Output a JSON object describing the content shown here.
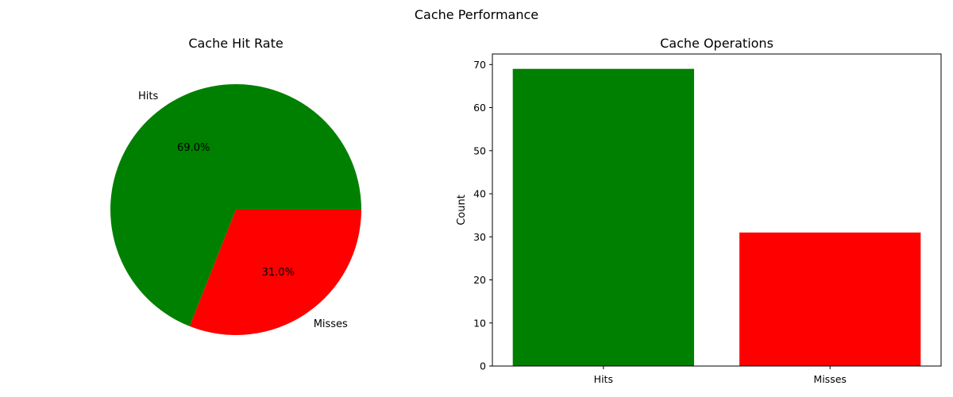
{
  "figure": {
    "title": "Cache Performance"
  },
  "chart_data": [
    {
      "type": "pie",
      "title": "Cache Hit Rate",
      "labels": [
        "Hits",
        "Misses"
      ],
      "values": [
        69,
        31
      ],
      "percent_labels": [
        "69.0%",
        "31.0%"
      ],
      "colors": [
        "#008000",
        "#ff0000"
      ]
    },
    {
      "type": "bar",
      "title": "Cache Operations",
      "categories": [
        "Hits",
        "Misses"
      ],
      "values": [
        69,
        31
      ],
      "colors": [
        "#008000",
        "#ff0000"
      ],
      "xlabel": "",
      "ylabel": "Count",
      "ylim": [
        0,
        72.45
      ],
      "yticks": [
        0,
        10,
        20,
        30,
        40,
        50,
        60,
        70
      ],
      "grid": false,
      "legend": "none"
    }
  ]
}
